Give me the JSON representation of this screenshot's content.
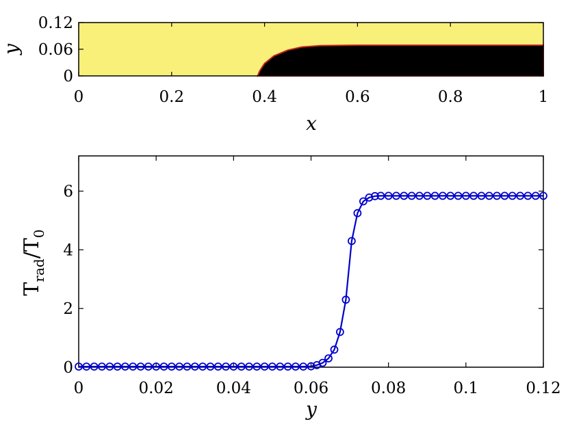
{
  "chart_data": [
    {
      "type": "heatmap",
      "xlabel": "x",
      "ylabel": "y",
      "xlim": [
        0,
        1
      ],
      "ylim": [
        0,
        0.12
      ],
      "x_ticks": [
        0,
        0.2,
        0.4,
        0.6,
        0.8,
        1
      ],
      "x_tick_labels": [
        "0",
        "0.2",
        "0.4",
        "0.6",
        "0.8",
        "1"
      ],
      "y_ticks": [
        0,
        0.06,
        0.12
      ],
      "y_tick_labels": [
        "0",
        "0.06",
        "0.12"
      ],
      "colors": {
        "high": "#f9f07a",
        "low": "#000000",
        "edge": "#c0241a"
      },
      "boundary": {
        "x": [
          0.385,
          0.39,
          0.4,
          0.42,
          0.45,
          0.48,
          0.52,
          0.6,
          1.0
        ],
        "y": [
          0.0,
          0.012,
          0.028,
          0.045,
          0.058,
          0.065,
          0.068,
          0.069,
          0.069
        ]
      }
    },
    {
      "type": "line",
      "xlabel": "y",
      "ylabel": "T_rad/T_0",
      "ylabel_parts": {
        "main": "T",
        "sub1": "rad",
        "slash": "/T",
        "sub2": "0"
      },
      "xlim": [
        0,
        0.12
      ],
      "ylim": [
        0,
        7.2
      ],
      "x_ticks": [
        0,
        0.02,
        0.04,
        0.06,
        0.08,
        0.1,
        0.12
      ],
      "x_tick_labels": [
        "0",
        "0.02",
        "0.04",
        "0.06",
        "0.08",
        "0.1",
        "0.12"
      ],
      "y_ticks": [
        0,
        2,
        4,
        6
      ],
      "y_tick_labels": [
        "0",
        "2",
        "4",
        "6"
      ],
      "series_color": "#0000cc",
      "series": [
        {
          "marker": "circle",
          "x": [
            0.0,
            0.002,
            0.004,
            0.006,
            0.008,
            0.01,
            0.012,
            0.014,
            0.016,
            0.018,
            0.02,
            0.022,
            0.024,
            0.026,
            0.028,
            0.03,
            0.032,
            0.034,
            0.036,
            0.038,
            0.04,
            0.042,
            0.044,
            0.046,
            0.048,
            0.05,
            0.052,
            0.054,
            0.056,
            0.058,
            0.06,
            0.0615,
            0.063,
            0.0645,
            0.066,
            0.0675,
            0.069,
            0.0705,
            0.072,
            0.0735,
            0.075,
            0.0765,
            0.078,
            0.08,
            0.082,
            0.084,
            0.086,
            0.088,
            0.09,
            0.092,
            0.094,
            0.096,
            0.098,
            0.1,
            0.102,
            0.104,
            0.106,
            0.108,
            0.11,
            0.112,
            0.114,
            0.116,
            0.118,
            0.12
          ],
          "y": [
            0.02,
            0.02,
            0.02,
            0.02,
            0.02,
            0.02,
            0.02,
            0.02,
            0.02,
            0.02,
            0.02,
            0.02,
            0.02,
            0.02,
            0.02,
            0.02,
            0.02,
            0.02,
            0.02,
            0.02,
            0.02,
            0.02,
            0.02,
            0.02,
            0.02,
            0.02,
            0.02,
            0.02,
            0.02,
            0.02,
            0.03,
            0.07,
            0.15,
            0.3,
            0.6,
            1.2,
            2.3,
            4.3,
            5.25,
            5.65,
            5.78,
            5.83,
            5.84,
            5.84,
            5.84,
            5.84,
            5.84,
            5.84,
            5.84,
            5.84,
            5.84,
            5.84,
            5.84,
            5.84,
            5.84,
            5.84,
            5.84,
            5.84,
            5.84,
            5.84,
            5.84,
            5.84,
            5.84,
            5.84
          ]
        }
      ]
    }
  ]
}
